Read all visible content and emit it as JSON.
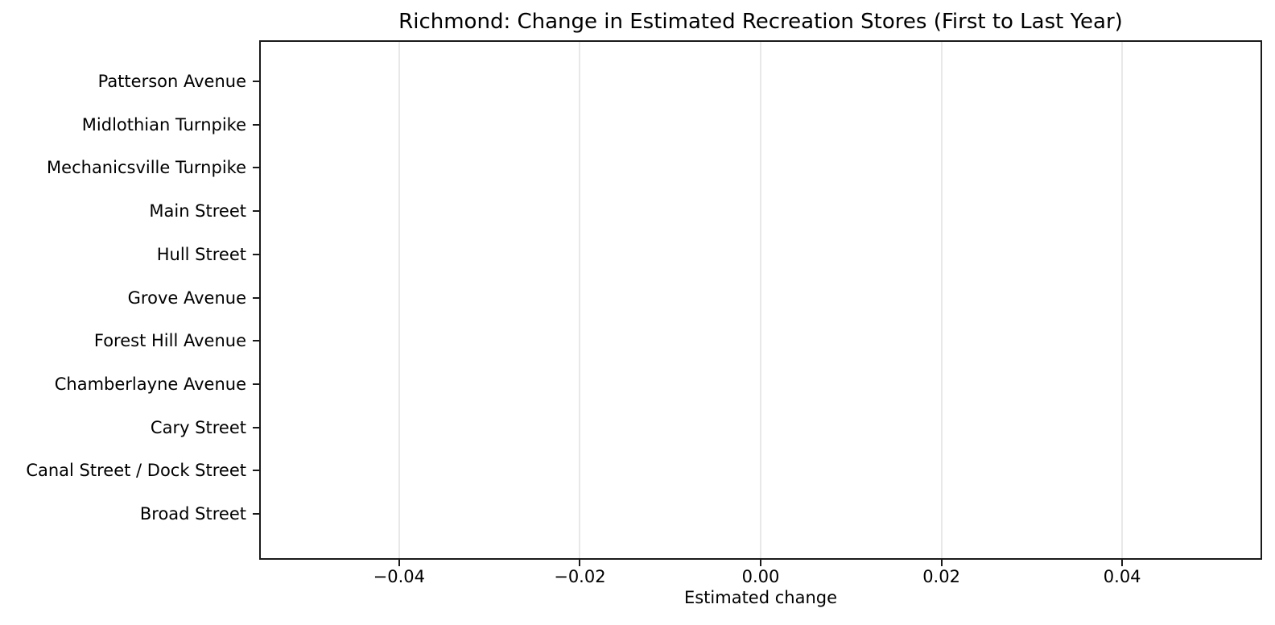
{
  "chart_data": {
    "type": "bar",
    "orientation": "horizontal",
    "title": "Richmond: Change in Estimated Recreation Stores (First to Last Year)",
    "xlabel": "Estimated change",
    "ylabel": "",
    "categories": [
      "Patterson Avenue",
      "Midlothian Turnpike",
      "Mechanicsville Turnpike",
      "Main Street",
      "Hull Street",
      "Grove Avenue",
      "Forest Hill Avenue",
      "Chamberlayne Avenue",
      "Cary Street",
      "Canal Street / Dock Street",
      "Broad Street"
    ],
    "values": [
      0,
      0,
      0,
      0,
      0,
      0,
      0,
      0,
      0,
      0,
      0
    ],
    "xlim": [
      -0.0553,
      0.0553
    ],
    "x_ticks": [
      {
        "value": -0.04,
        "label": "−0.04"
      },
      {
        "value": -0.02,
        "label": "−0.02"
      },
      {
        "value": 0.0,
        "label": "0.00"
      },
      {
        "value": 0.02,
        "label": "0.02"
      },
      {
        "value": 0.04,
        "label": "0.04"
      }
    ],
    "grid": "vertical",
    "legend": "none",
    "colors": {
      "background": "#ffffff",
      "grid": "#e8e8e8",
      "spine": "#1a1a1a",
      "text": "#000000",
      "bar": "#1a1a1a"
    }
  }
}
